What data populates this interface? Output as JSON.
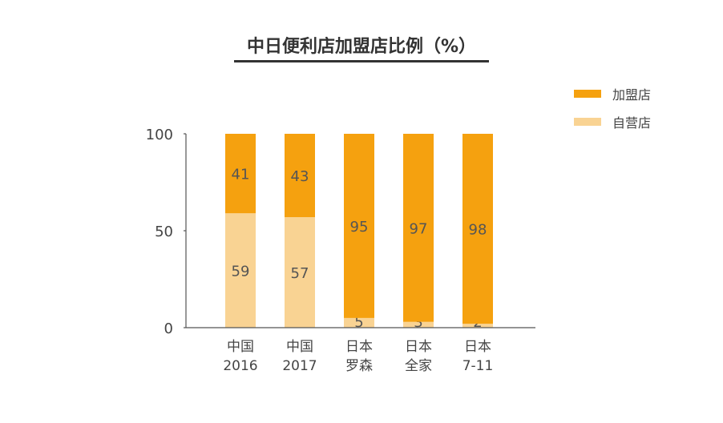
{
  "chart_data": {
    "type": "bar",
    "stacked": true,
    "title": "中日便利店加盟店比例（%）",
    "categories": [
      [
        "中国",
        "2016"
      ],
      [
        "中国",
        "2017"
      ],
      [
        "日本",
        "罗森"
      ],
      [
        "日本",
        "全家"
      ],
      [
        "日本",
        "7-11"
      ]
    ],
    "series": [
      {
        "name": "自营店",
        "values": [
          59,
          57,
          5,
          3,
          2
        ],
        "color": "#f9d393"
      },
      {
        "name": "加盟店",
        "values": [
          41,
          43,
          95,
          97,
          98
        ],
        "color": "#f5a10f"
      }
    ],
    "ylim": [
      0,
      100
    ],
    "yticks": [
      "0",
      "50",
      "100"
    ],
    "grid": false,
    "legend": "top-right"
  }
}
